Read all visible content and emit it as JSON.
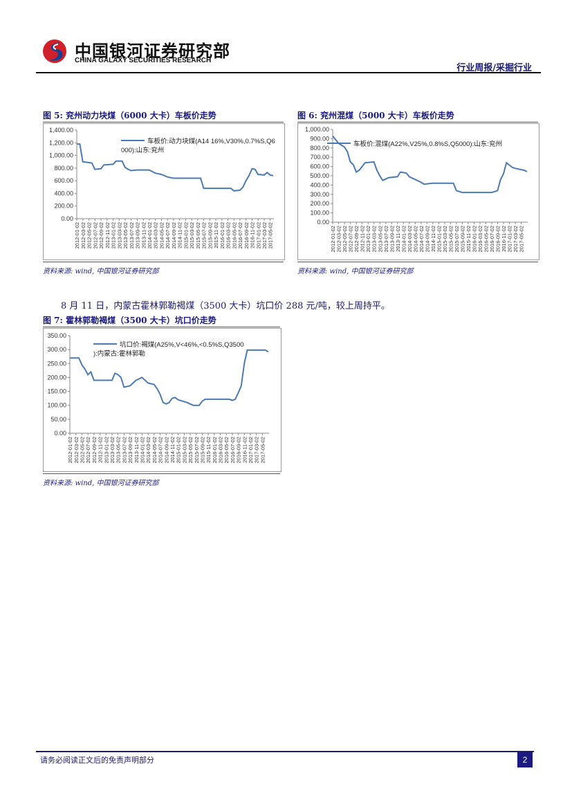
{
  "header": {
    "brand_cn": "中国银河证券研究部",
    "brand_en": "CHINA GALAXY SECURITIES RESEARCH",
    "section": "行业周报/采掘行业"
  },
  "colors": {
    "line": "#4a7ab5",
    "title": "#1a1a80",
    "brand_red": "#d0202a",
    "brand_blue": "#1a3f8f"
  },
  "figures": [
    {
      "title": "图 5: 兖州动力块煤（6000 大卡）车板价走势",
      "source": "资料来源: wind, 中国银河证券研究部"
    },
    {
      "title": "图 6: 兖州混煤（5000 大卡）车板价走势",
      "source": "资料来源: wind, 中国银河证券研究部"
    },
    {
      "title": "图 7: 霍林郭勒褐煤（3500 大卡）坑口价走势",
      "source": "资料来源: wind, 中国银河证券研究部"
    }
  ],
  "paragraph": "8 月 11 日，内蒙古霍林郭勒褐煤（3500 大卡）坑口价 288 元/吨，较上周持平。",
  "footer": {
    "disclaimer": "请务必阅读正文后的免责声明部分",
    "page": "2"
  },
  "chart_data": [
    {
      "type": "line",
      "legend": "车板价:动力块煤(A14 16%,V30%,0.7%S,Q6000):山东:兖州",
      "legend_placement": "top-right",
      "ylim": [
        0,
        1400
      ],
      "yticks": [
        "0.00",
        "200.00",
        "400.00",
        "600.00",
        "800.00",
        "1,000.00",
        "1,200.00",
        "1,400.00"
      ],
      "xticks": [
        "2012-01-02",
        "2012-03-02",
        "2012-05-02",
        "2012-07-02",
        "2012-09-02",
        "2012-11-02",
        "2013-01-02",
        "2013-03-02",
        "2013-05-02",
        "2013-07-02",
        "2013-09-02",
        "2013-11-02",
        "2014-01-02",
        "2014-03-02",
        "2014-05-02",
        "2014-07-02",
        "2014-09-02",
        "2014-11-02",
        "2015-01-02",
        "2015-03-02",
        "2015-05-02",
        "2015-07-02",
        "2015-09-02",
        "2015-11-02",
        "2016-01-02",
        "2016-03-02",
        "2016-05-02",
        "2016-07-02",
        "2016-09-02",
        "2016-11-02",
        "2017-01-02",
        "2017-03-02",
        "2017-05-02"
      ],
      "x": [
        "2012-01",
        "2012-02",
        "2012-03",
        "2012-06",
        "2012-07",
        "2012-09",
        "2012-10",
        "2013-01",
        "2013-02",
        "2013-04",
        "2013-05",
        "2013-06",
        "2013-07",
        "2013-09",
        "2014-01",
        "2014-03",
        "2014-05",
        "2014-07",
        "2014-09",
        "2015-06",
        "2015-07",
        "2016-04",
        "2016-05",
        "2016-07",
        "2016-08",
        "2016-09",
        "2016-10",
        "2016-11",
        "2016-12",
        "2017-01",
        "2017-03",
        "2017-04",
        "2017-05",
        "2017-06"
      ],
      "y": [
        1180,
        1180,
        900,
        880,
        780,
        790,
        850,
        860,
        910,
        910,
        810,
        780,
        760,
        770,
        770,
        720,
        700,
        660,
        640,
        640,
        480,
        480,
        440,
        450,
        500,
        600,
        680,
        790,
        780,
        700,
        690,
        730,
        690,
        680
      ]
    },
    {
      "type": "line",
      "legend": "车板价:混煤(A22%,V25%,0.8%S,Q5000):山东:兖州",
      "legend_placement": "top-right",
      "ylim": [
        0,
        1000
      ],
      "yticks": [
        "0.00",
        "100.00",
        "200.00",
        "300.00",
        "400.00",
        "500.00",
        "600.00",
        "700.00",
        "800.00",
        "900.00",
        "1,000.00"
      ],
      "xticks": [
        "2012-01-02",
        "2012-03-02",
        "2012-05-02",
        "2012-07-02",
        "2012-09-02",
        "2012-11-02",
        "2013-01-02",
        "2013-03-02",
        "2013-05-02",
        "2013-07-02",
        "2013-09-02",
        "2013-11-02",
        "2014-01-02",
        "2014-03-02",
        "2014-05-02",
        "2014-07-02",
        "2014-09-02",
        "2014-11-02",
        "2015-01-02",
        "2015-03-02",
        "2015-05-02",
        "2015-07-02",
        "2015-09-02",
        "2015-11-02",
        "2016-01-02",
        "2016-03-02",
        "2016-05-02",
        "2016-07-02",
        "2016-09-02",
        "2016-11-02",
        "2017-01-02",
        "2017-03-02",
        "2017-05-02"
      ],
      "x": [
        "2012-01",
        "2012-03",
        "2012-05",
        "2012-06",
        "2012-07",
        "2012-08",
        "2012-09",
        "2012-10",
        "2012-12",
        "2013-03",
        "2013-04",
        "2013-05",
        "2013-06",
        "2013-08",
        "2013-11",
        "2013-12",
        "2014-02",
        "2014-03",
        "2014-05",
        "2014-07",
        "2014-08",
        "2014-11",
        "2015-06",
        "2015-07",
        "2015-09",
        "2016-07",
        "2016-08",
        "2016-09",
        "2016-10",
        "2016-11",
        "2016-12",
        "2017-02",
        "2017-03",
        "2017-06",
        "2017-07"
      ],
      "y": [
        930,
        850,
        810,
        760,
        650,
        620,
        540,
        560,
        640,
        650,
        560,
        500,
        450,
        480,
        490,
        540,
        530,
        490,
        460,
        430,
        410,
        420,
        420,
        340,
        320,
        320,
        330,
        340,
        460,
        520,
        640,
        590,
        580,
        560,
        545
      ]
    },
    {
      "type": "line",
      "legend": "坑口价:褐煤(A25%,V<46%,<0.5%S,Q3500):内蒙古:霍林郭勒",
      "legend_placement": "top-right",
      "ylim": [
        0,
        350
      ],
      "yticks": [
        "0.00",
        "50.00",
        "100.00",
        "150.00",
        "200.00",
        "250.00",
        "300.00",
        "350.00"
      ],
      "xticks": [
        "2012-01-02",
        "2012-03-02",
        "2012-05-02",
        "2012-07-02",
        "2012-09-02",
        "2012-11-02",
        "2013-01-02",
        "2013-03-02",
        "2013-05-02",
        "2013-07-02",
        "2013-09-02",
        "2013-11-02",
        "2014-01-02",
        "2014-03-02",
        "2014-05-02",
        "2014-07-02",
        "2014-09-02",
        "2014-11-02",
        "2015-01-02",
        "2015-03-02",
        "2015-05-02",
        "2015-07-02",
        "2015-09-02",
        "2015-11-02",
        "2016-01-02",
        "2016-03-02",
        "2016-05-02",
        "2016-07-02",
        "2016-09-02",
        "2016-11-02",
        "2017-01-02",
        "2017-03-02",
        "2017-05-02"
      ],
      "x": [
        "2012-01",
        "2012-04",
        "2012-05",
        "2012-06",
        "2012-07",
        "2012-08",
        "2012-09",
        "2013-03",
        "2013-04",
        "2013-05",
        "2013-06",
        "2013-07",
        "2013-09",
        "2013-11",
        "2014-01",
        "2014-03",
        "2014-05",
        "2014-06",
        "2014-07",
        "2014-08",
        "2014-09",
        "2014-10",
        "2014-11",
        "2014-12",
        "2015-01",
        "2015-04",
        "2015-06",
        "2015-08",
        "2015-09",
        "2015-10",
        "2016-06",
        "2016-07",
        "2016-08",
        "2016-09",
        "2016-10",
        "2016-11",
        "2016-12",
        "2017-06",
        "2017-07"
      ],
      "y": [
        270,
        270,
        245,
        230,
        210,
        220,
        190,
        190,
        215,
        210,
        200,
        165,
        170,
        190,
        200,
        180,
        175,
        160,
        140,
        110,
        105,
        110,
        125,
        128,
        120,
        110,
        100,
        100,
        115,
        122,
        122,
        118,
        122,
        145,
        170,
        250,
        298,
        298,
        292
      ]
    }
  ]
}
